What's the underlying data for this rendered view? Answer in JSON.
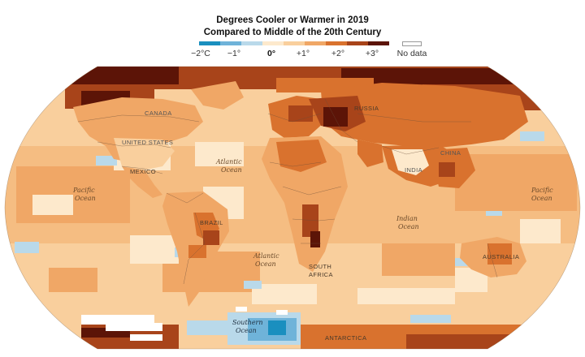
{
  "title_line1": "Degrees Cooler or Warmer in 2019",
  "title_line2": "Compared to Middle of the 20th Century",
  "legend": {
    "ticks": [
      {
        "label": "−2°C",
        "bold": false
      },
      {
        "label": "−1°",
        "bold": false
      },
      {
        "label": "0°",
        "bold": true
      },
      {
        "label": "+1°",
        "bold": false
      },
      {
        "label": "+2°",
        "bold": false
      },
      {
        "label": "+3°",
        "bold": false
      }
    ],
    "nodata_label": "No data",
    "colors": [
      "#1a8fbf",
      "#6fb3d9",
      "#b9d9ea",
      "#fde9cc",
      "#f9cf9d",
      "#f0a766",
      "#d9722e",
      "#a8441a",
      "#5c1407"
    ]
  },
  "map": {
    "countries": [
      "CANADA",
      "UNITED STATES",
      "MEXICO",
      "BRAZIL",
      "RUSSIA",
      "CHINA",
      "INDIA",
      "AUSTRALIA",
      "SOUTH",
      "AFRICA",
      "ANTARCTICA"
    ],
    "oceans": [
      "Atlantic",
      "Ocean",
      "Pacific",
      "Ocean",
      "Atlantic",
      "Ocean",
      "Indian",
      "Ocean",
      "Pacific",
      "Ocean",
      "Southern",
      "Ocean"
    ]
  }
}
